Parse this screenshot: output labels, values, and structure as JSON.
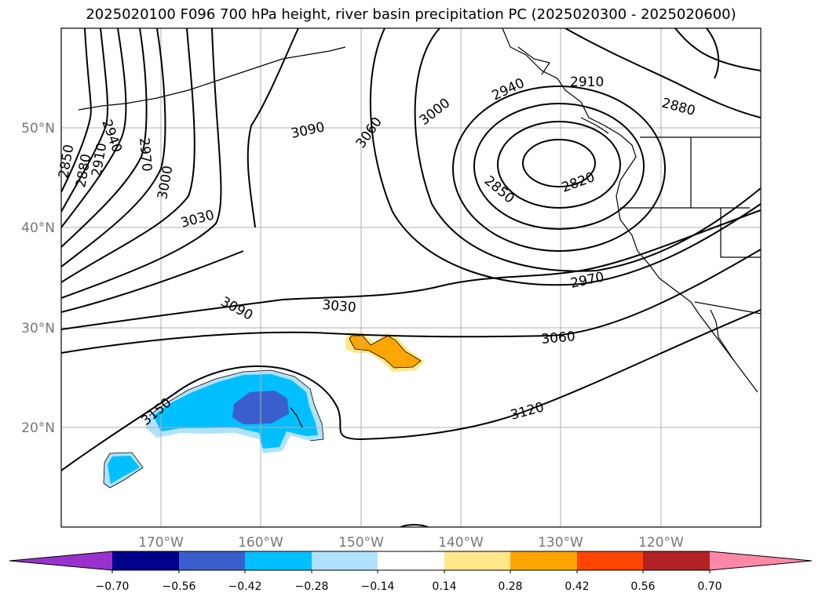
{
  "title": "2025020100 F096 700 hPa height, river basin precipitation PC (2025020300 - 2025020600)",
  "axes": {
    "lon_labels": [
      "170°W",
      "160°W",
      "150°W",
      "140°W",
      "130°W",
      "120°W"
    ],
    "lat_labels": [
      "50°N",
      "40°N",
      "30°N",
      "20°N"
    ]
  },
  "contour_labels": [
    "2850",
    "2880",
    "2910",
    "2940",
    "2970",
    "3000",
    "3030",
    "3090",
    "3060",
    "3000",
    "2940",
    "2910",
    "2880",
    "2820",
    "2850",
    "2970",
    "3030",
    "3090",
    "3060",
    "3120",
    "3150"
  ],
  "colorbar": {
    "tick_labels": [
      "−0.70",
      "−0.56",
      "−0.42",
      "−0.28",
      "−0.14",
      "0.14",
      "0.28",
      "0.42",
      "0.56",
      "0.70"
    ],
    "colors": [
      "#9932CC",
      "#00008B",
      "#3A5FCD",
      "#00BFFF",
      "#B0E2FF",
      "#FFFFFF",
      "#FFE78A",
      "#FFA500",
      "#FF4500",
      "#B22222",
      "#FF88A8"
    ]
  }
}
